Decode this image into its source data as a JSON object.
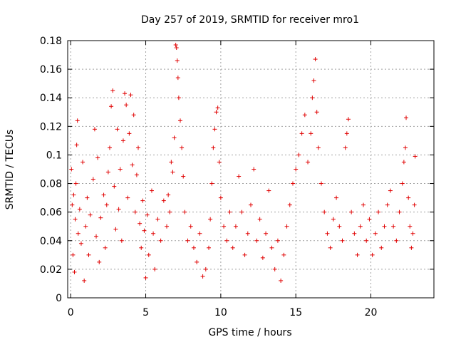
{
  "chart_data": {
    "type": "scatter",
    "title": "Day 257 of 2019, SRMTID for receiver mro1",
    "xlabel": "GPS time / hours",
    "ylabel": "SRMTID / TECUs",
    "xlim": [
      -0.2,
      24.2
    ],
    "ylim": [
      0,
      0.18
    ],
    "grid": true,
    "marker": "+",
    "series_color": "#e00000",
    "x_ticks": [
      {
        "value": 0,
        "label": "0"
      },
      {
        "value": 5,
        "label": "5"
      },
      {
        "value": 10,
        "label": "10"
      },
      {
        "value": 15,
        "label": "15"
      },
      {
        "value": 20,
        "label": "20"
      }
    ],
    "y_ticks": [
      {
        "value": 0,
        "label": "0"
      },
      {
        "value": 0.02,
        "label": "0.02"
      },
      {
        "value": 0.04,
        "label": "0.04"
      },
      {
        "value": 0.06,
        "label": "0.06"
      },
      {
        "value": 0.08,
        "label": "0.08"
      },
      {
        "value": 0.1,
        "label": "0.1"
      },
      {
        "value": 0.12,
        "label": "0.12"
      },
      {
        "value": 0.14,
        "label": "0.14"
      },
      {
        "value": 0.16,
        "label": "0.16"
      },
      {
        "value": 0.18,
        "label": "0.18"
      }
    ],
    "series": [
      {
        "name": "SRMTID",
        "points": [
          [
            0.05,
            0.09
          ],
          [
            0.1,
            0.065
          ],
          [
            0.15,
            0.03
          ],
          [
            0.2,
            0.072
          ],
          [
            0.25,
            0.018
          ],
          [
            0.3,
            0.055
          ],
          [
            0.35,
            0.08
          ],
          [
            0.4,
            0.107
          ],
          [
            0.45,
            0.124
          ],
          [
            0.5,
            0.045
          ],
          [
            0.6,
            0.062
          ],
          [
            0.7,
            0.038
          ],
          [
            0.8,
            0.095
          ],
          [
            0.9,
            0.012
          ],
          [
            1.0,
            0.05
          ],
          [
            1.1,
            0.07
          ],
          [
            1.2,
            0.03
          ],
          [
            1.3,
            0.058
          ],
          [
            1.5,
            0.083
          ],
          [
            1.6,
            0.118
          ],
          [
            1.7,
            0.043
          ],
          [
            1.8,
            0.098
          ],
          [
            1.9,
            0.025
          ],
          [
            2.0,
            0.056
          ],
          [
            2.2,
            0.072
          ],
          [
            2.3,
            0.035
          ],
          [
            2.4,
            0.065
          ],
          [
            2.5,
            0.088
          ],
          [
            2.6,
            0.105
          ],
          [
            2.7,
            0.134
          ],
          [
            2.8,
            0.145
          ],
          [
            2.9,
            0.078
          ],
          [
            3.0,
            0.048
          ],
          [
            3.1,
            0.118
          ],
          [
            3.2,
            0.062
          ],
          [
            3.3,
            0.09
          ],
          [
            3.4,
            0.04
          ],
          [
            3.5,
            0.11
          ],
          [
            3.6,
            0.143
          ],
          [
            3.7,
            0.135
          ],
          [
            3.8,
            0.07
          ],
          [
            3.9,
            0.115
          ],
          [
            4.0,
            0.142
          ],
          [
            4.1,
            0.093
          ],
          [
            4.2,
            0.128
          ],
          [
            4.3,
            0.06
          ],
          [
            4.4,
            0.086
          ],
          [
            4.5,
            0.105
          ],
          [
            4.6,
            0.052
          ],
          [
            4.7,
            0.035
          ],
          [
            4.8,
            0.068
          ],
          [
            4.9,
            0.047
          ],
          [
            5.0,
            0.014
          ],
          [
            5.1,
            0.058
          ],
          [
            5.2,
            0.03
          ],
          [
            5.4,
            0.075
          ],
          [
            5.5,
            0.045
          ],
          [
            5.6,
            0.02
          ],
          [
            5.8,
            0.055
          ],
          [
            6.0,
            0.04
          ],
          [
            6.2,
            0.068
          ],
          [
            6.4,
            0.05
          ],
          [
            6.5,
            0.072
          ],
          [
            6.6,
            0.06
          ],
          [
            6.7,
            0.095
          ],
          [
            6.8,
            0.088
          ],
          [
            6.9,
            0.112
          ],
          [
            7.0,
            0.177
          ],
          [
            7.05,
            0.175
          ],
          [
            7.1,
            0.166
          ],
          [
            7.15,
            0.154
          ],
          [
            7.2,
            0.14
          ],
          [
            7.3,
            0.124
          ],
          [
            7.4,
            0.105
          ],
          [
            7.5,
            0.085
          ],
          [
            7.6,
            0.06
          ],
          [
            7.8,
            0.04
          ],
          [
            8.0,
            0.05
          ],
          [
            8.2,
            0.035
          ],
          [
            8.4,
            0.025
          ],
          [
            8.6,
            0.045
          ],
          [
            8.8,
            0.015
          ],
          [
            9.0,
            0.02
          ],
          [
            9.2,
            0.035
          ],
          [
            9.3,
            0.055
          ],
          [
            9.4,
            0.08
          ],
          [
            9.5,
            0.105
          ],
          [
            9.6,
            0.118
          ],
          [
            9.7,
            0.13
          ],
          [
            9.8,
            0.133
          ],
          [
            9.9,
            0.095
          ],
          [
            10.0,
            0.07
          ],
          [
            10.2,
            0.05
          ],
          [
            10.4,
            0.04
          ],
          [
            10.6,
            0.06
          ],
          [
            10.8,
            0.035
          ],
          [
            11.0,
            0.05
          ],
          [
            11.2,
            0.085
          ],
          [
            11.4,
            0.06
          ],
          [
            11.6,
            0.03
          ],
          [
            11.8,
            0.045
          ],
          [
            12.0,
            0.065
          ],
          [
            12.2,
            0.09
          ],
          [
            12.4,
            0.04
          ],
          [
            12.6,
            0.055
          ],
          [
            12.8,
            0.028
          ],
          [
            13.0,
            0.045
          ],
          [
            13.2,
            0.075
          ],
          [
            13.4,
            0.035
          ],
          [
            13.6,
            0.02
          ],
          [
            13.8,
            0.04
          ],
          [
            14.0,
            0.012
          ],
          [
            14.2,
            0.03
          ],
          [
            14.4,
            0.05
          ],
          [
            14.6,
            0.065
          ],
          [
            14.8,
            0.08
          ],
          [
            15.0,
            0.09
          ],
          [
            15.2,
            0.1
          ],
          [
            15.4,
            0.115
          ],
          [
            15.6,
            0.128
          ],
          [
            15.8,
            0.095
          ],
          [
            16.0,
            0.115
          ],
          [
            16.1,
            0.14
          ],
          [
            16.2,
            0.152
          ],
          [
            16.3,
            0.167
          ],
          [
            16.4,
            0.13
          ],
          [
            16.5,
            0.105
          ],
          [
            16.7,
            0.08
          ],
          [
            16.9,
            0.06
          ],
          [
            17.1,
            0.045
          ],
          [
            17.3,
            0.035
          ],
          [
            17.5,
            0.055
          ],
          [
            17.7,
            0.07
          ],
          [
            17.9,
            0.05
          ],
          [
            18.1,
            0.04
          ],
          [
            18.3,
            0.105
          ],
          [
            18.4,
            0.115
          ],
          [
            18.5,
            0.125
          ],
          [
            18.7,
            0.06
          ],
          [
            18.9,
            0.045
          ],
          [
            19.1,
            0.03
          ],
          [
            19.3,
            0.05
          ],
          [
            19.5,
            0.065
          ],
          [
            19.7,
            0.04
          ],
          [
            19.9,
            0.055
          ],
          [
            20.1,
            0.03
          ],
          [
            20.3,
            0.045
          ],
          [
            20.5,
            0.06
          ],
          [
            20.7,
            0.035
          ],
          [
            20.9,
            0.05
          ],
          [
            21.1,
            0.065
          ],
          [
            21.3,
            0.075
          ],
          [
            21.5,
            0.05
          ],
          [
            21.7,
            0.04
          ],
          [
            21.9,
            0.06
          ],
          [
            22.1,
            0.08
          ],
          [
            22.2,
            0.095
          ],
          [
            22.3,
            0.105
          ],
          [
            22.35,
            0.126
          ],
          [
            22.5,
            0.07
          ],
          [
            22.6,
            0.05
          ],
          [
            22.7,
            0.035
          ],
          [
            22.8,
            0.045
          ],
          [
            22.9,
            0.065
          ],
          [
            22.95,
            0.099
          ]
        ]
      }
    ]
  }
}
